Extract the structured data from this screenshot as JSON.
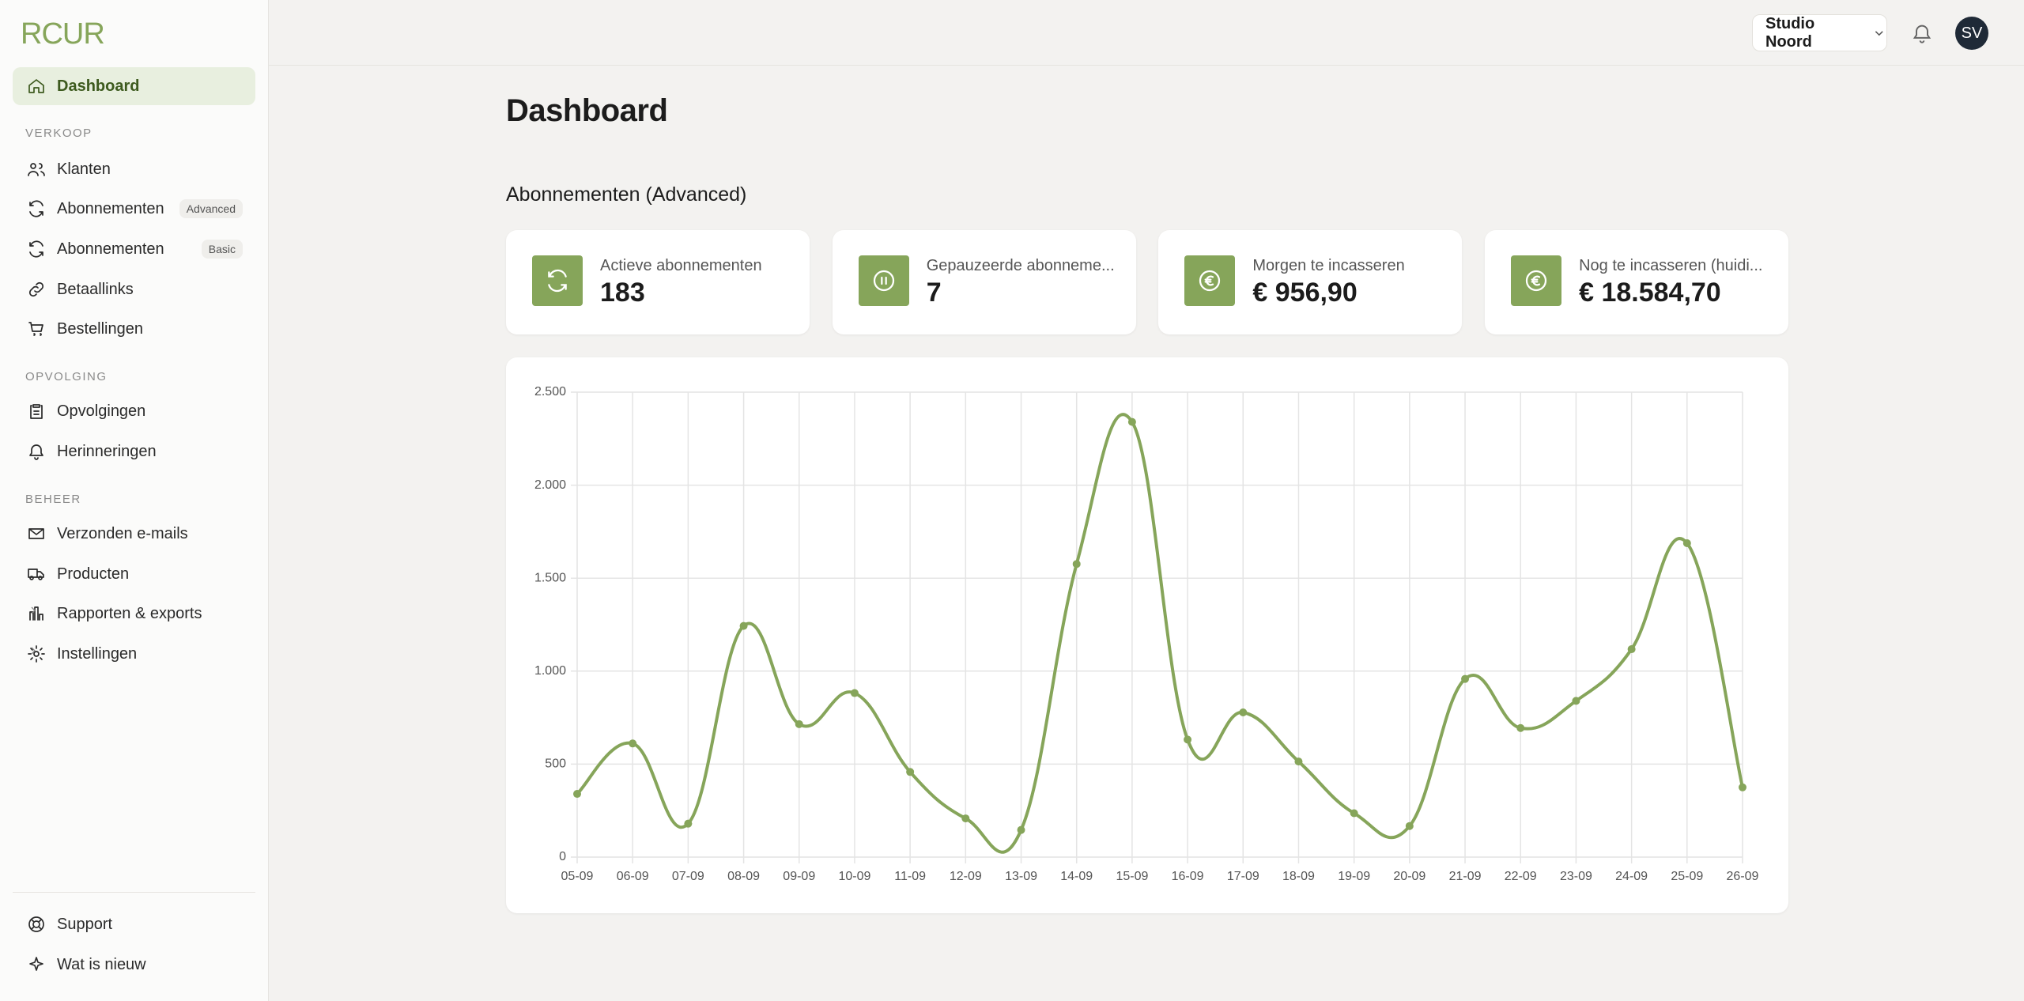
{
  "brand": "RCUR",
  "nav": {
    "active": "Dashboard",
    "sections": [
      {
        "title": "VERKOOP",
        "items": [
          {
            "label": "Klanten"
          },
          {
            "label": "Abonnementen",
            "badge": "Advanced"
          },
          {
            "label": "Abonnementen",
            "badge": "Basic"
          },
          {
            "label": "Betaallinks"
          },
          {
            "label": "Bestellingen"
          }
        ]
      },
      {
        "title": "OPVOLGING",
        "items": [
          {
            "label": "Opvolgingen"
          },
          {
            "label": "Herinneringen"
          }
        ]
      },
      {
        "title": "BEHEER",
        "items": [
          {
            "label": "Verzonden e-mails"
          },
          {
            "label": "Producten"
          },
          {
            "label": "Rapporten & exports"
          },
          {
            "label": "Instellingen"
          }
        ]
      }
    ],
    "footer": [
      {
        "label": "Support"
      },
      {
        "label": "Wat is nieuw"
      }
    ]
  },
  "header": {
    "workspace": "Studio Noord",
    "avatar": "SV"
  },
  "page": {
    "title": "Dashboard",
    "section": "Abonnementen (Advanced)"
  },
  "cards": [
    {
      "label": "Actieve abonnementen",
      "value": "183"
    },
    {
      "label": "Gepauzeerde abonneme...",
      "value": "7"
    },
    {
      "label": "Morgen te incasseren",
      "value": "€ 956,90"
    },
    {
      "label": "Nog te incasseren (huidi...",
      "value": "€ 18.584,70"
    }
  ],
  "chart_data": {
    "type": "line",
    "categories": [
      "05-09",
      "06-09",
      "07-09",
      "08-09",
      "09-09",
      "10-09",
      "11-09",
      "12-09",
      "13-09",
      "14-09",
      "15-09",
      "16-09",
      "17-09",
      "18-09",
      "19-09",
      "20-09",
      "21-09",
      "22-09",
      "23-09",
      "24-09",
      "25-09",
      "26-09"
    ],
    "values": [
      340,
      611,
      180,
      1243,
      715,
      882,
      458,
      208,
      146,
      1576,
      2340,
      632,
      778,
      514,
      236,
      167,
      958,
      694,
      840,
      1118,
      1688,
      375
    ],
    "color": "#86a55a",
    "ylim": [
      0,
      2500
    ],
    "yticks": [
      0,
      500,
      {
        "value": 1000,
        "label": "1.000"
      },
      {
        "value": 1500,
        "label": "1.500"
      },
      {
        "value": 2000,
        "label": "2.000"
      },
      {
        "value": 2500,
        "label": "2.500"
      }
    ],
    "grid": true
  }
}
